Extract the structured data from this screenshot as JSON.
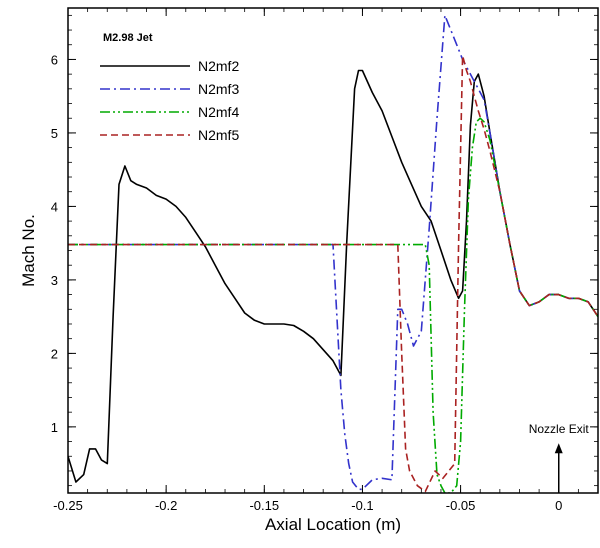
{
  "chart_data": {
    "type": "line",
    "title": "",
    "xlabel": "Axial Location (m)",
    "ylabel": "Mach No.",
    "xlim": [
      -0.25,
      0.02
    ],
    "ylim": [
      0.1,
      6.7
    ],
    "x_ticks": [
      -0.25,
      -0.2,
      -0.15,
      -0.1,
      -0.05,
      0
    ],
    "x_tick_labels": [
      "-0.25",
      "-0.2",
      "-0.15",
      "-0.1",
      "-0.05",
      "0"
    ],
    "y_ticks": [
      1,
      2,
      3,
      4,
      5,
      6
    ],
    "y_tick_labels": [
      "1",
      "2",
      "3",
      "4",
      "5",
      "6"
    ],
    "grid": false,
    "legend": {
      "title": "M2.98 Jet",
      "placement": "top-left"
    },
    "annotation": {
      "text": "Nozzle Exit",
      "x": 0,
      "y_from": 0.1,
      "y_to": 0.75
    },
    "series": [
      {
        "name": "N2mf2",
        "color": "#000000",
        "dash": "solid",
        "x": [
          -0.25,
          -0.246,
          -0.242,
          -0.239,
          -0.236,
          -0.233,
          -0.23,
          -0.227,
          -0.224,
          -0.221,
          -0.218,
          -0.215,
          -0.21,
          -0.205,
          -0.2,
          -0.195,
          -0.19,
          -0.185,
          -0.18,
          -0.175,
          -0.17,
          -0.165,
          -0.16,
          -0.155,
          -0.15,
          -0.145,
          -0.14,
          -0.135,
          -0.13,
          -0.125,
          -0.12,
          -0.115,
          -0.111,
          -0.108,
          -0.104,
          -0.102,
          -0.1,
          -0.095,
          -0.09,
          -0.085,
          -0.08,
          -0.075,
          -0.07,
          -0.065,
          -0.06,
          -0.055,
          -0.051,
          -0.049,
          -0.047,
          -0.045,
          -0.043,
          -0.041,
          -0.038,
          -0.035,
          -0.03,
          -0.025,
          -0.02,
          -0.015,
          -0.01,
          -0.005,
          0,
          0.005,
          0.01,
          0.015,
          0.02
        ],
        "y": [
          0.6,
          0.25,
          0.35,
          0.7,
          0.7,
          0.55,
          0.5,
          2.5,
          4.3,
          4.55,
          4.35,
          4.3,
          4.25,
          4.15,
          4.1,
          4.0,
          3.85,
          3.65,
          3.45,
          3.2,
          2.95,
          2.75,
          2.55,
          2.45,
          2.4,
          2.4,
          2.4,
          2.38,
          2.3,
          2.2,
          2.05,
          1.9,
          1.7,
          3.5,
          5.6,
          5.85,
          5.85,
          5.55,
          5.3,
          4.95,
          4.6,
          4.3,
          4.0,
          3.8,
          3.4,
          3.0,
          2.75,
          2.85,
          3.8,
          5.1,
          5.7,
          5.8,
          5.5,
          5.0,
          4.2,
          3.5,
          2.85,
          2.65,
          2.7,
          2.8,
          2.8,
          2.75,
          2.75,
          2.7,
          2.5
        ]
      },
      {
        "name": "N2mf3",
        "color": "#3333cc",
        "dash": "dashdot",
        "x": [
          -0.25,
          -0.115,
          -0.113,
          -0.111,
          -0.109,
          -0.107,
          -0.105,
          -0.102,
          -0.1,
          -0.095,
          -0.09,
          -0.085,
          -0.082,
          -0.08,
          -0.077,
          -0.074,
          -0.07,
          -0.066,
          -0.062,
          -0.058,
          -0.055,
          -0.052,
          -0.049,
          -0.047,
          -0.045,
          -0.043,
          -0.041,
          -0.038,
          -0.035,
          -0.03,
          -0.025,
          -0.02,
          -0.015,
          -0.01,
          -0.005,
          0,
          0.005,
          0.01,
          0.015,
          0.02
        ],
        "y": [
          3.48,
          3.48,
          2.5,
          1.5,
          0.9,
          0.5,
          0.25,
          0.15,
          0.15,
          0.28,
          0.3,
          0.28,
          2.6,
          2.6,
          2.4,
          2.1,
          2.3,
          3.7,
          5.2,
          6.6,
          6.4,
          6.2,
          6.0,
          5.9,
          5.8,
          5.7,
          5.6,
          5.45,
          5.0,
          4.2,
          3.5,
          2.85,
          2.65,
          2.7,
          2.8,
          2.8,
          2.75,
          2.75,
          2.7,
          2.5
        ]
      },
      {
        "name": "N2mf4",
        "color": "#00aa00",
        "dash": "dashdotdot",
        "x": [
          -0.25,
          -0.068,
          -0.066,
          -0.064,
          -0.062,
          -0.06,
          -0.058,
          -0.055,
          -0.052,
          -0.05,
          -0.048,
          -0.046,
          -0.044,
          -0.042,
          -0.04,
          -0.038,
          -0.035,
          -0.03,
          -0.025,
          -0.02,
          -0.015,
          -0.01,
          -0.005,
          0,
          0.005,
          0.01,
          0.015,
          0.02
        ],
        "y": [
          3.48,
          3.48,
          3.2,
          1.2,
          0.35,
          0.2,
          0.1,
          0.1,
          0.2,
          0.8,
          2.6,
          4.1,
          4.8,
          5.15,
          5.2,
          5.15,
          4.9,
          4.2,
          3.5,
          2.85,
          2.65,
          2.7,
          2.8,
          2.8,
          2.75,
          2.75,
          2.7,
          2.5
        ]
      },
      {
        "name": "N2mf5",
        "color": "#aa2222",
        "dash": "dashed",
        "x": [
          -0.25,
          -0.082,
          -0.08,
          -0.078,
          -0.076,
          -0.072,
          -0.068,
          -0.063,
          -0.059,
          -0.056,
          -0.053,
          -0.051,
          -0.049,
          -0.047,
          -0.045,
          -0.043,
          -0.041,
          -0.038,
          -0.035,
          -0.03,
          -0.025,
          -0.02,
          -0.015,
          -0.01,
          -0.005,
          0,
          0.005,
          0.01,
          0.015,
          0.02
        ],
        "y": [
          3.48,
          3.48,
          2.0,
          0.7,
          0.4,
          0.2,
          0.12,
          0.4,
          0.3,
          0.4,
          0.5,
          3.5,
          6.05,
          5.85,
          5.7,
          5.5,
          5.3,
          5.05,
          4.75,
          4.2,
          3.5,
          2.85,
          2.65,
          2.7,
          2.8,
          2.8,
          2.75,
          2.75,
          2.7,
          2.5
        ]
      }
    ]
  }
}
